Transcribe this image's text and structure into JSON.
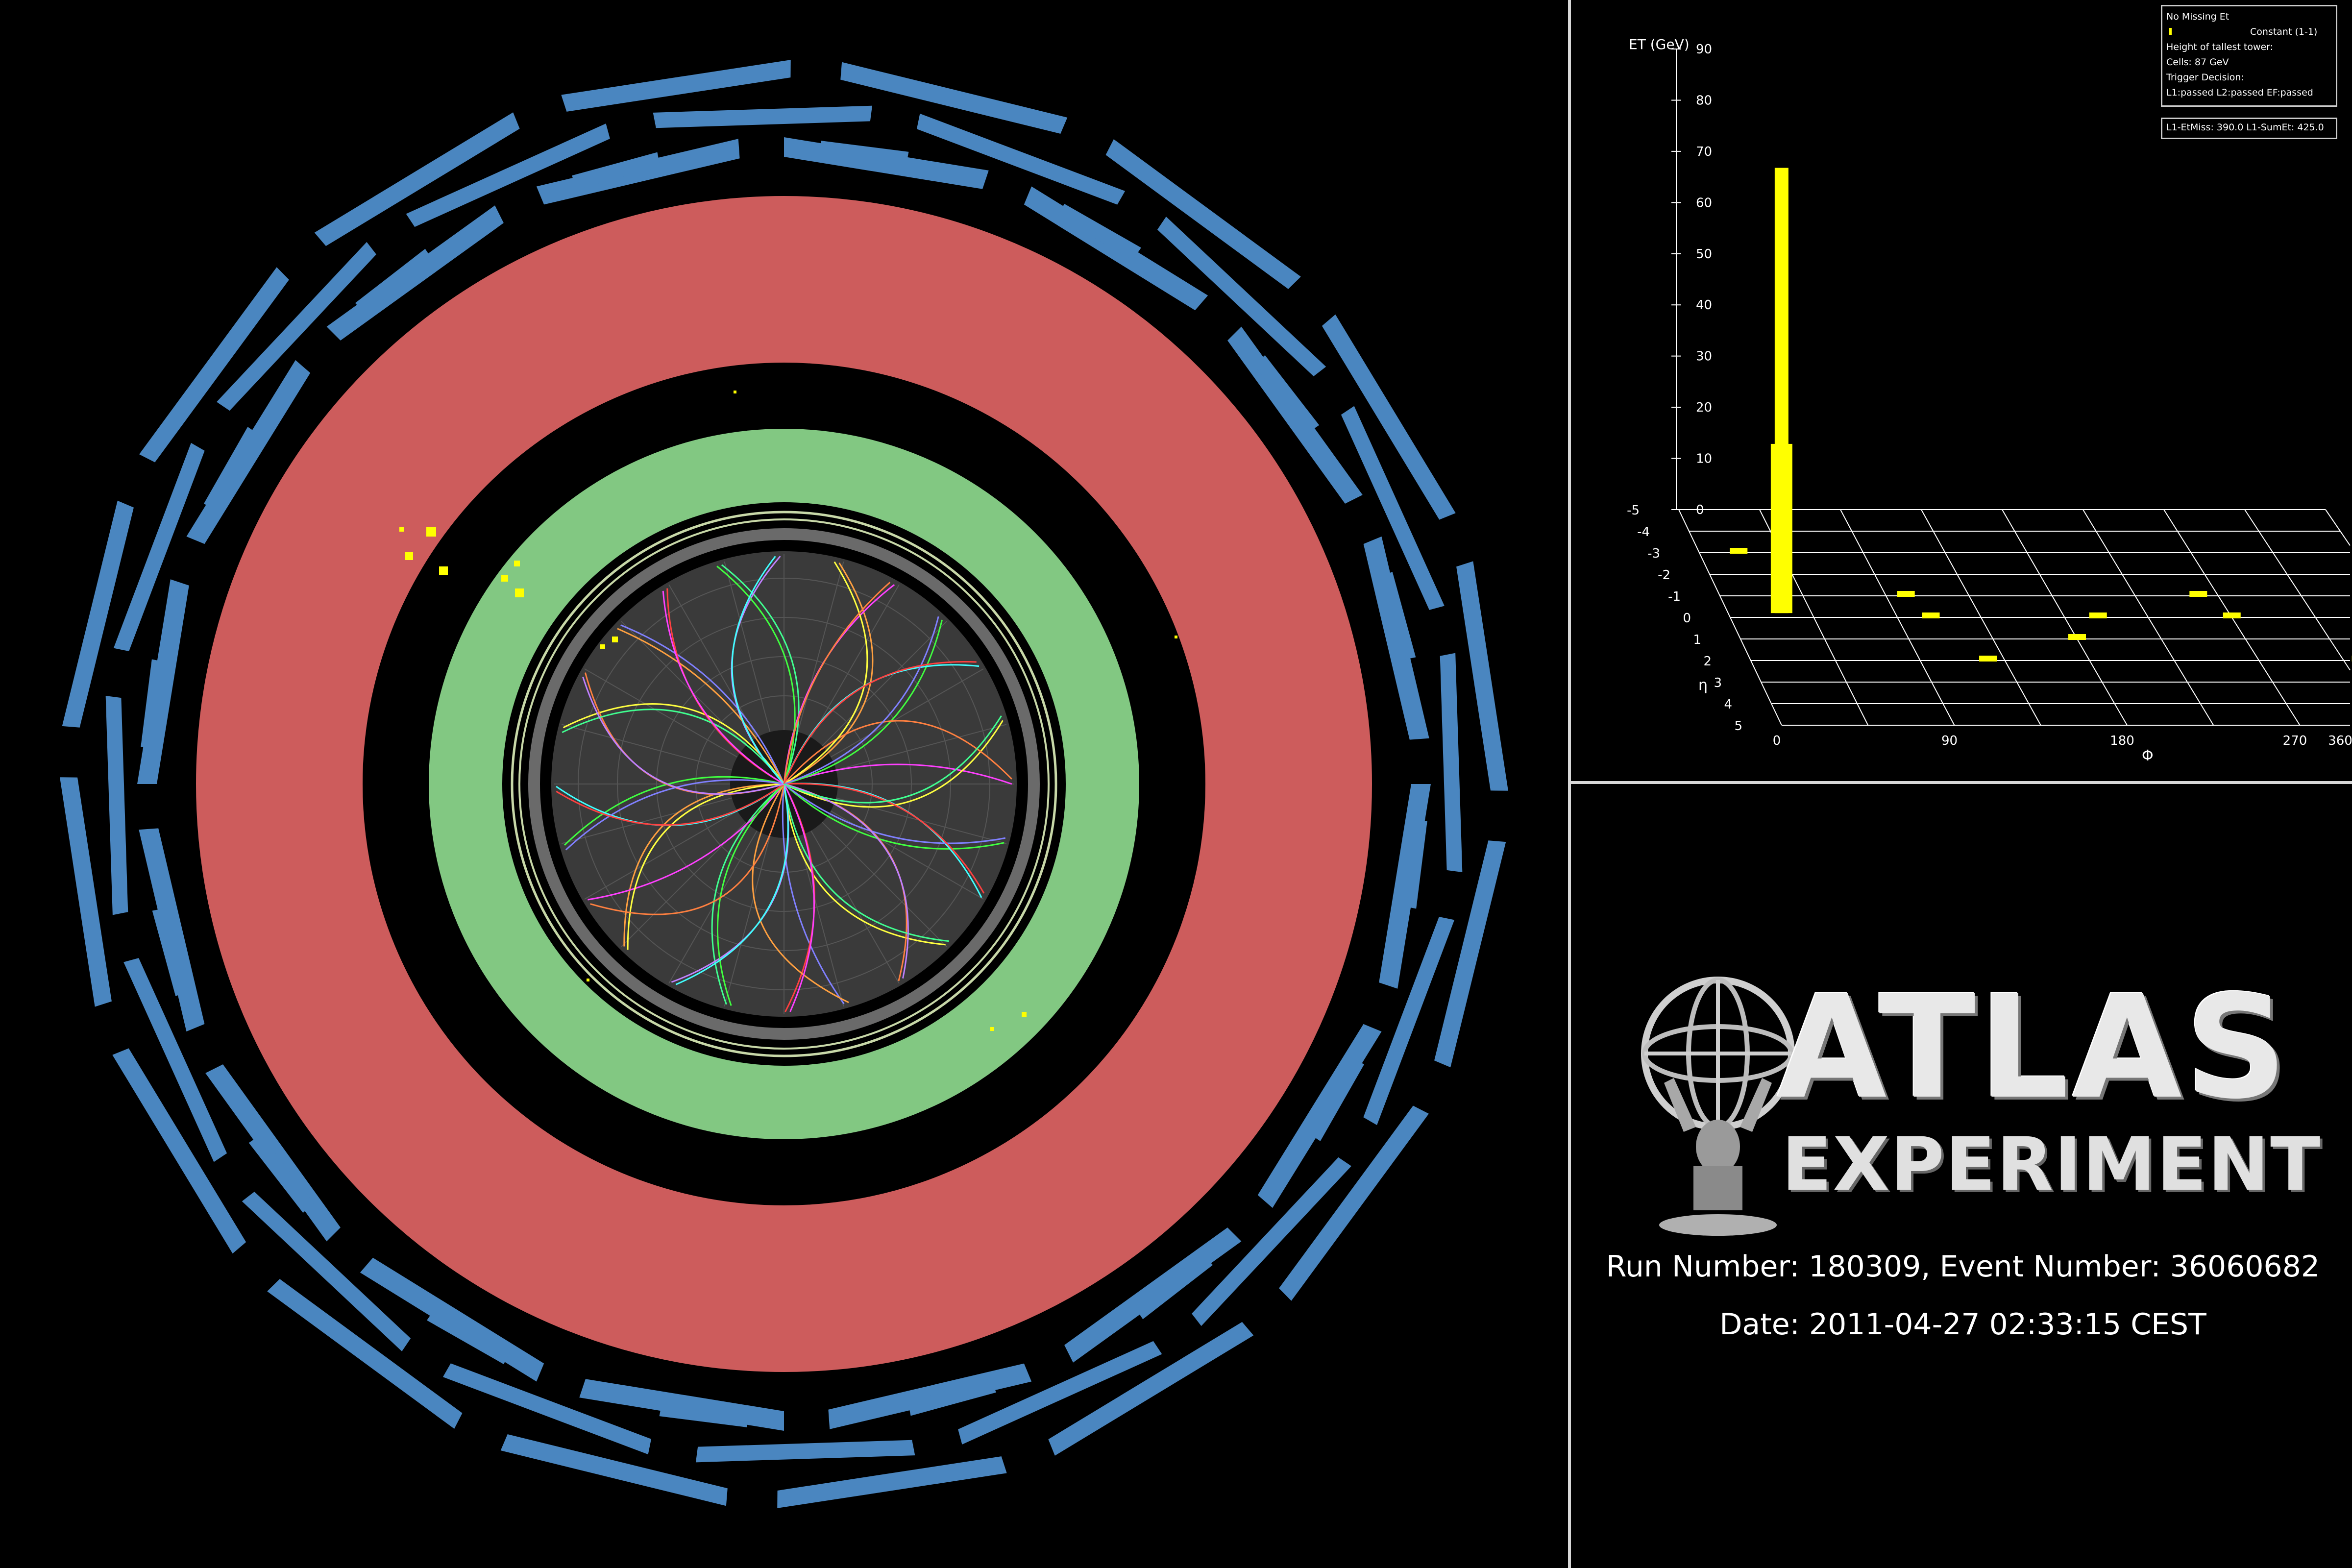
{
  "legend": {
    "no_missing_et": "No Missing Et",
    "constant": "Constant (1-1)",
    "tallest_tower": "Height of tallest tower:",
    "cells": "Cells: 87 GeV",
    "trigger_decision": "Trigger Decision:",
    "trigger_result": "L1:passed L2:passed EF:passed",
    "l1_info": "L1-EtMiss: 390.0 L1-SumEt: 425.0"
  },
  "lego_plot": {
    "et_axis_title": "ET (GeV)",
    "et_ticks": [
      "90",
      "80",
      "70",
      "60",
      "50",
      "40",
      "30",
      "20",
      "10",
      "0"
    ],
    "eta_ticks": [
      "-5",
      "-4",
      "-3",
      "-2",
      "-1",
      "0",
      "1",
      "2",
      "3",
      "4",
      "5"
    ],
    "eta_label": "η",
    "phi_ticks": [
      "0",
      "90",
      "180",
      "270",
      "360"
    ],
    "phi_label": "Φ",
    "tower_height_gev": 87,
    "tower_color": "#ffff00"
  },
  "logo": {
    "line1": "ATLAS",
    "line2": "EXPERIMENT"
  },
  "event": {
    "run_line": "Run Number: 180309, Event Number: 36060682",
    "date_line": "Date: 2011-04-27 02:33:15 CEST"
  },
  "colors": {
    "muon": "#4a86c0",
    "hadronic_calo": "#cd5c5c",
    "em_calo": "#82c882",
    "inner_detector": "#3a3a3a",
    "energy_deposit": "#ffff00"
  }
}
